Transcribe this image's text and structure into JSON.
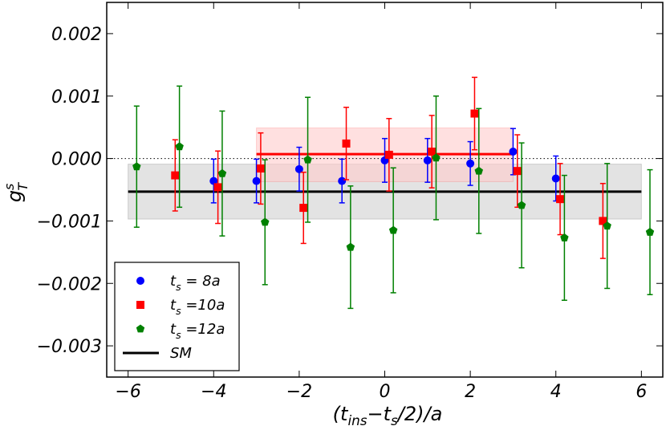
{
  "chart_data": {
    "type": "scatter",
    "title": "",
    "xlabel": "(t_ins−t_s/2)/a",
    "ylabel": "g_T^s",
    "xlim": [
      -6.5,
      6.5
    ],
    "ylim": [
      -0.0035,
      0.0025
    ],
    "x_ticks": [
      -6,
      -4,
      -2,
      0,
      2,
      4,
      6
    ],
    "x_tick_labels": [
      "−6",
      "−4",
      "−2",
      "0",
      "2",
      "4",
      "6"
    ],
    "y_ticks": [
      0.002,
      0.001,
      0.0,
      -0.001,
      -0.002,
      -0.003
    ],
    "y_tick_labels": [
      "0.002",
      "0.001",
      "0.000",
      "−0.001",
      "−0.002",
      "−0.003"
    ],
    "legend_position": "bottom-left",
    "legend": [
      "t_s = 8a",
      "t_s =10a",
      "t_s =12a",
      "SM"
    ],
    "zero_line": {
      "y": 0.0,
      "style": "dotted"
    },
    "series": [
      {
        "name": "t_s = 8a",
        "color": "#0000ff",
        "marker": "circle",
        "points": [
          {
            "x": -4,
            "y": -0.00036,
            "err": 0.00035
          },
          {
            "x": -3,
            "y": -0.00036,
            "err": 0.00035
          },
          {
            "x": -2,
            "y": -0.00017,
            "err": 0.00035
          },
          {
            "x": -1,
            "y": -0.00036,
            "err": 0.00035
          },
          {
            "x": 0,
            "y": -3e-05,
            "err": 0.00035
          },
          {
            "x": 1,
            "y": -3e-05,
            "err": 0.00035
          },
          {
            "x": 2,
            "y": -8e-05,
            "err": 0.00035
          },
          {
            "x": 3,
            "y": 0.00011,
            "err": 0.00037
          },
          {
            "x": 4,
            "y": -0.00032,
            "err": 0.00036
          }
        ]
      },
      {
        "name": "t_s =10a",
        "color": "#ff0000",
        "marker": "square",
        "points": [
          {
            "x": -5,
            "y": -0.00027,
            "err": 0.00057
          },
          {
            "x": -4,
            "y": -0.00046,
            "err": 0.00058
          },
          {
            "x": -3,
            "y": -0.00016,
            "err": 0.00057
          },
          {
            "x": -2,
            "y": -0.00079,
            "err": 0.00057
          },
          {
            "x": -1,
            "y": 0.00024,
            "err": 0.00058
          },
          {
            "x": 0,
            "y": 6e-05,
            "err": 0.00058
          },
          {
            "x": 1,
            "y": 0.00011,
            "err": 0.00058
          },
          {
            "x": 2,
            "y": 0.00072,
            "err": 0.00058
          },
          {
            "x": 3,
            "y": -0.0002,
            "err": 0.00058
          },
          {
            "x": 4,
            "y": -0.00065,
            "err": 0.00057
          },
          {
            "x": 5,
            "y": -0.001,
            "err": 0.0006
          }
        ]
      },
      {
        "name": "t_s =12a",
        "color": "#008000",
        "marker": "pentagon",
        "points": [
          {
            "x": -6,
            "y": -0.00013,
            "err": 0.00097
          },
          {
            "x": -5,
            "y": 0.00019,
            "err": 0.00097
          },
          {
            "x": -4,
            "y": -0.00024,
            "err": 0.001
          },
          {
            "x": -3,
            "y": -0.00102,
            "err": 0.001
          },
          {
            "x": -2,
            "y": -2e-05,
            "err": 0.001
          },
          {
            "x": -1,
            "y": -0.00142,
            "err": 0.00098
          },
          {
            "x": 0,
            "y": -0.00115,
            "err": 0.001
          },
          {
            "x": 1,
            "y": 1e-05,
            "err": 0.00099
          },
          {
            "x": 2,
            "y": -0.0002,
            "err": 0.001
          },
          {
            "x": 3,
            "y": -0.00075,
            "err": 0.001
          },
          {
            "x": 4,
            "y": -0.00127,
            "err": 0.001
          },
          {
            "x": 5,
            "y": -0.00108,
            "err": 0.001
          },
          {
            "x": 6,
            "y": -0.00118,
            "err": 0.001
          }
        ]
      }
    ],
    "fits": [
      {
        "name": "t_s =10a fit",
        "color": "#ff0000",
        "x_range": [
          -3,
          3
        ],
        "value": 7e-05,
        "band": [
          -0.00037,
          0.00049
        ],
        "band_color": "#ffcccc"
      },
      {
        "name": "SM",
        "color": "#000000",
        "x_range": [
          -6,
          6
        ],
        "value": -0.00053,
        "band": [
          -0.00097,
          -9e-05
        ],
        "band_color": "#d0d0d0"
      }
    ]
  }
}
